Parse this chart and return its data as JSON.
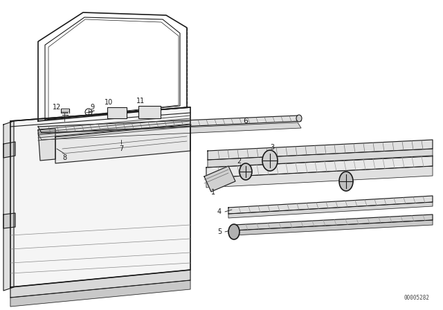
{
  "background_color": "#ffffff",
  "line_color": "#1a1a1a",
  "fig_width": 6.4,
  "fig_height": 4.48,
  "dpi": 100,
  "watermark": "00005282",
  "label_fontsize": 7.0
}
